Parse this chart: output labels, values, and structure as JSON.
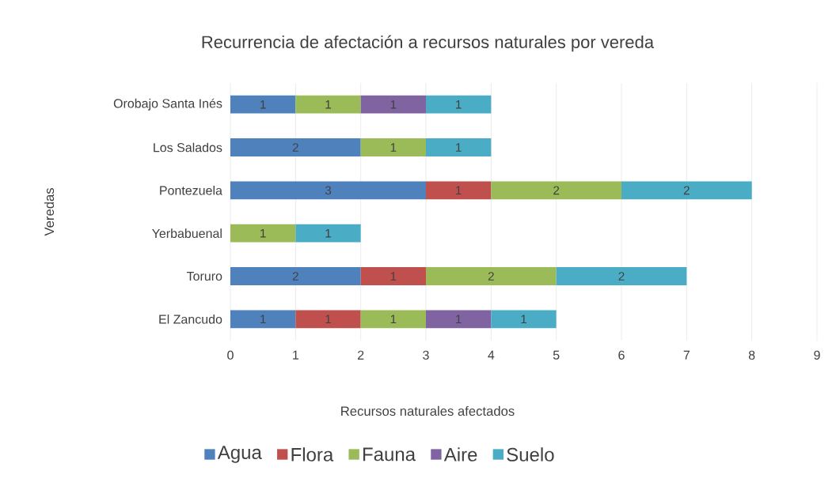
{
  "chart_data": {
    "type": "bar",
    "orientation": "horizontal",
    "stacked": true,
    "title": "Recurrencia de afectación a recursos naturales por vereda",
    "xlabel": "Recursos naturales afectados",
    "ylabel": "Veredas",
    "categories": [
      "Orobajo Santa Inés",
      "Los Salados",
      "Pontezuela",
      "Yerbabuenal",
      "Toruro",
      "El Zancudo"
    ],
    "series": [
      {
        "name": "Agua",
        "color": "#4f81bd",
        "values": [
          1,
          2,
          3,
          null,
          2,
          1
        ]
      },
      {
        "name": "Flora",
        "color": "#c0504d",
        "values": [
          null,
          null,
          1,
          null,
          1,
          1
        ]
      },
      {
        "name": "Fauna",
        "color": "#9bbb59",
        "values": [
          1,
          1,
          2,
          1,
          2,
          1
        ]
      },
      {
        "name": "Aire",
        "color": "#8064a2",
        "values": [
          1,
          null,
          null,
          null,
          null,
          1
        ]
      },
      {
        "name": "Suelo",
        "color": "#4bacc6",
        "values": [
          1,
          1,
          2,
          1,
          2,
          1
        ]
      }
    ],
    "xlim": [
      0,
      9
    ],
    "xticks": [
      0,
      1,
      2,
      3,
      4,
      5,
      6,
      7,
      8,
      9
    ],
    "grid": "x",
    "legend": "bottom",
    "data_labels": true
  }
}
